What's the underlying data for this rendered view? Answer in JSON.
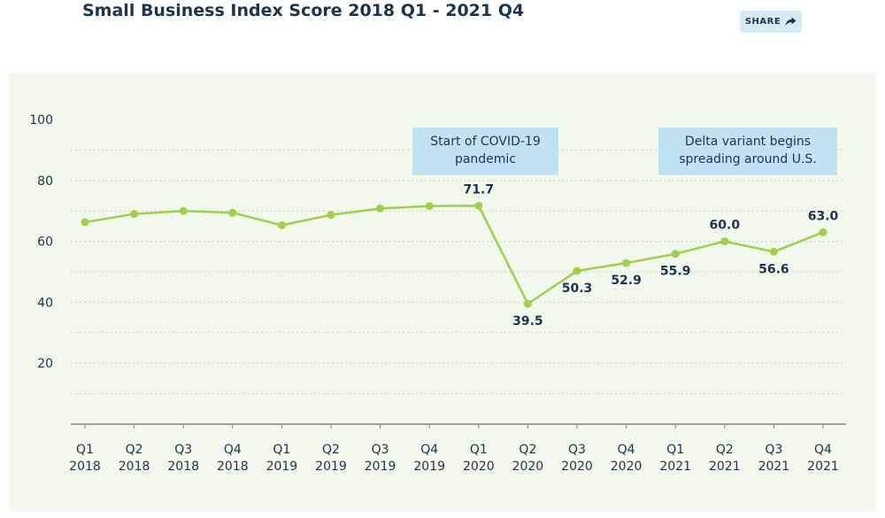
{
  "header": {
    "title": "Small Business Index Score 2018 Q1 - 2021 Q4",
    "share_label": "SHARE",
    "share_icon": "share-arrow-icon"
  },
  "colors": {
    "title": "#1b3550",
    "panel_background": "#f2f8ec",
    "line": "#9fcf4f",
    "annotation_box": "#bfe3f3",
    "share_button": "#d7ebf5"
  },
  "chart_data": {
    "type": "line",
    "title": "Small Business Index Score 2018 Q1 - 2021 Q4",
    "xlabel": "",
    "ylabel": "",
    "ylim": [
      0,
      100
    ],
    "yticks": [
      20,
      40,
      60,
      80,
      100
    ],
    "grid": true,
    "legend": "none",
    "categories": [
      {
        "quarter": "Q1",
        "year": "2018"
      },
      {
        "quarter": "Q2",
        "year": "2018"
      },
      {
        "quarter": "Q3",
        "year": "2018"
      },
      {
        "quarter": "Q4",
        "year": "2018"
      },
      {
        "quarter": "Q1",
        "year": "2019"
      },
      {
        "quarter": "Q2",
        "year": "2019"
      },
      {
        "quarter": "Q3",
        "year": "2019"
      },
      {
        "quarter": "Q4",
        "year": "2019"
      },
      {
        "quarter": "Q1",
        "year": "2020"
      },
      {
        "quarter": "Q2",
        "year": "2020"
      },
      {
        "quarter": "Q3",
        "year": "2020"
      },
      {
        "quarter": "Q4",
        "year": "2020"
      },
      {
        "quarter": "Q1",
        "year": "2021"
      },
      {
        "quarter": "Q2",
        "year": "2021"
      },
      {
        "quarter": "Q3",
        "year": "2021"
      },
      {
        "quarter": "Q4",
        "year": "2021"
      }
    ],
    "series": [
      {
        "values": [
          66.3,
          69.0,
          70.0,
          69.4,
          65.3,
          68.7,
          70.8,
          71.6,
          71.7,
          39.5,
          50.3,
          52.9,
          55.9,
          60.0,
          56.6,
          63.0
        ],
        "labels": [
          "",
          "",
          "",
          "",
          "",
          "",
          "",
          "",
          "71.7",
          "39.5",
          "50.3",
          "52.9",
          "55.9",
          "60.0",
          "56.6",
          "63.0"
        ]
      }
    ],
    "annotations": [
      {
        "text_line1": "Start of COVID-19",
        "text_line2": "pandemic",
        "near": "2020 Q1"
      },
      {
        "text_line1": "Delta variant begins",
        "text_line2": "spreading around U.S.",
        "near": "2021 Q2"
      }
    ]
  }
}
